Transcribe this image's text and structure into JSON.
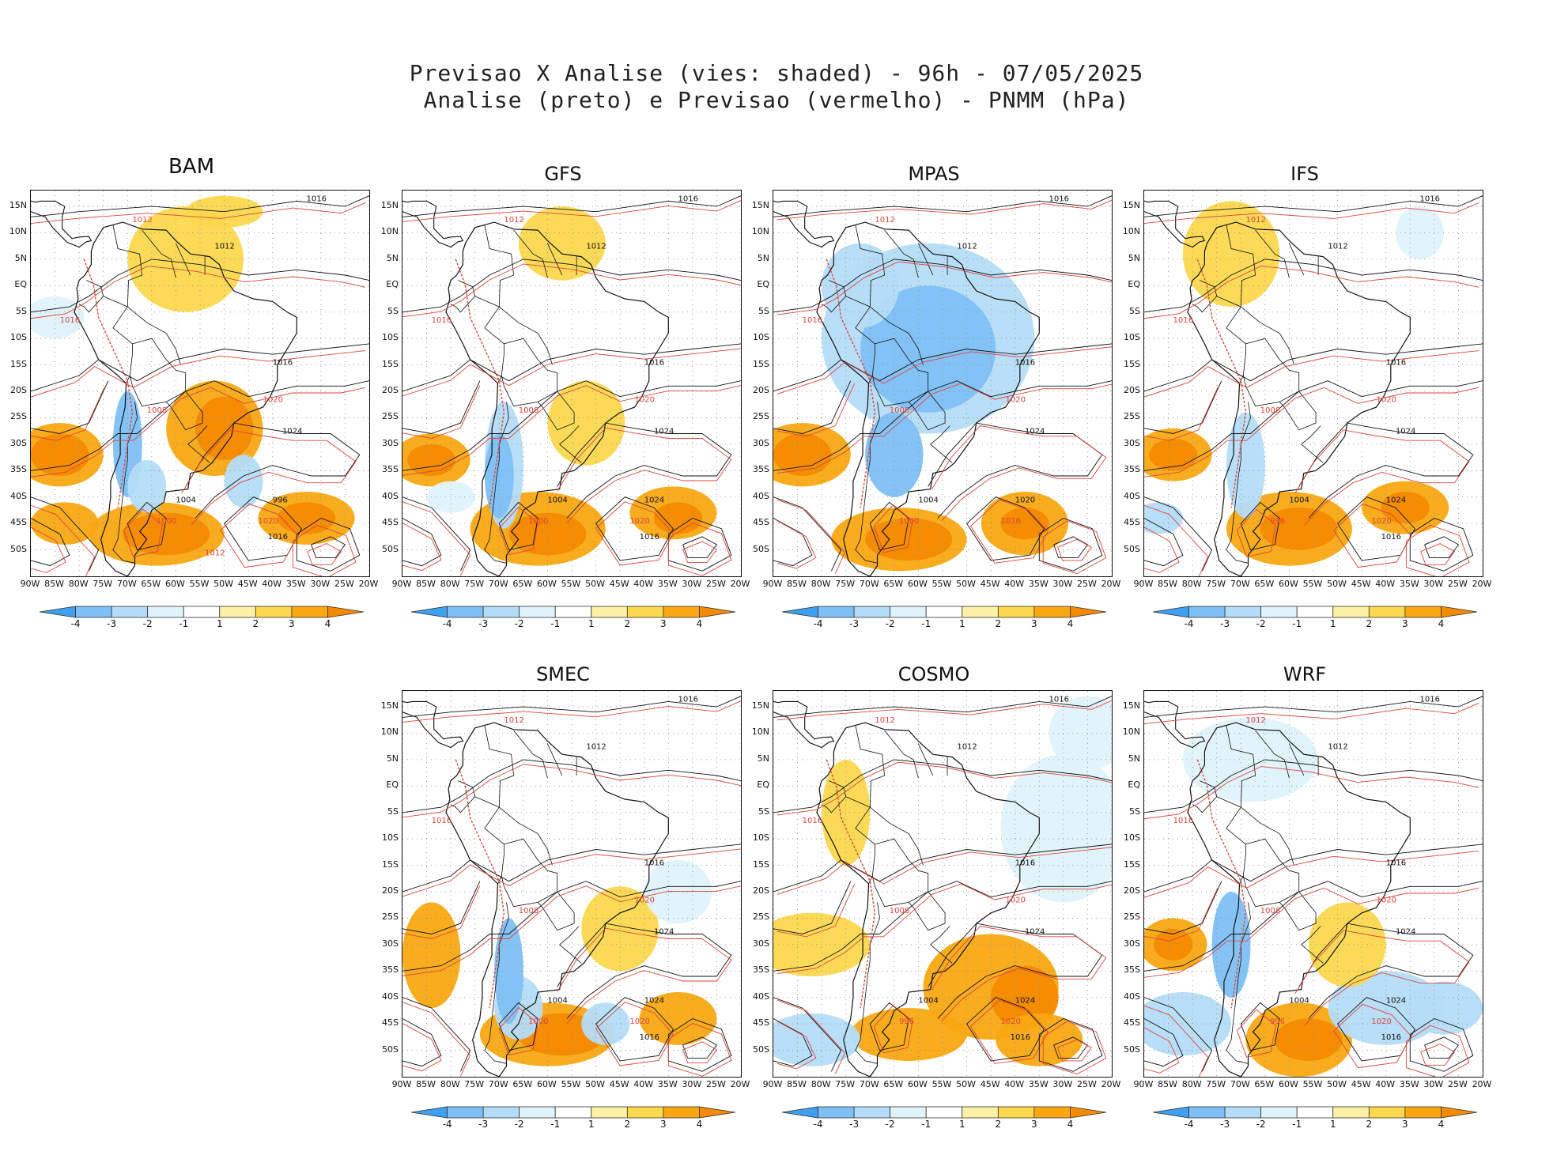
{
  "title_line1": "Previsao X Analise (vies: shaded) - 96h - 07/05/2025",
  "title_line2": "Analise (preto) e Previsao (vermelho) - PNMM (hPa)",
  "lat_ticks": [
    "15N",
    "10N",
    "5N",
    "EQ",
    "5S",
    "10S",
    "15S",
    "20S",
    "25S",
    "30S",
    "35S",
    "40S",
    "45S",
    "50S"
  ],
  "lon_ticks": [
    "90W",
    "85W",
    "80W",
    "75W",
    "70W",
    "65W",
    "60W",
    "55W",
    "50W",
    "45W",
    "40W",
    "35W",
    "30W",
    "25W",
    "20W"
  ],
  "colorbar": {
    "labels": [
      "-4",
      "-3",
      "-2",
      "-1",
      "1",
      "2",
      "3",
      "4"
    ],
    "colors": [
      "#3f9ff0",
      "#7ec0f5",
      "#b4dcf8",
      "#dff3fb",
      "#ffffff",
      "#fdf1a8",
      "#fcd84e",
      "#f9a811",
      "#f48a00"
    ]
  },
  "colors": {
    "analysis_contour": "#111111",
    "forecast_contour": "#e0443a"
  },
  "panels": [
    {
      "model": "BAM",
      "contour_labels": [
        "1016",
        "1012",
        "1012",
        "1016",
        "1016",
        "1020",
        "1024",
        "1008",
        "1004",
        "1000",
        "996",
        "1020",
        "1016",
        "1012"
      ]
    },
    {
      "model": "GFS",
      "contour_labels": [
        "1016",
        "1012",
        "1012",
        "1016",
        "1016",
        "1020",
        "1024",
        "1008",
        "1004",
        "1000",
        "1024",
        "1020",
        "1016"
      ]
    },
    {
      "model": "MPAS",
      "contour_labels": [
        "1016",
        "1012",
        "1012",
        "1016",
        "1016",
        "1020",
        "1024",
        "1008",
        "1004",
        "1000",
        "1020",
        "1016"
      ]
    },
    {
      "model": "IFS",
      "contour_labels": [
        "1016",
        "1012",
        "1012",
        "1016",
        "1016",
        "1020",
        "1024",
        "1008",
        "1004",
        "996",
        "1024",
        "1020",
        "1016"
      ]
    },
    {
      "model": "SMEC",
      "contour_labels": [
        "1016",
        "1012",
        "1012",
        "1016",
        "1016",
        "1020",
        "1024",
        "1008",
        "1004",
        "1000",
        "1024",
        "1020",
        "1016"
      ]
    },
    {
      "model": "COSMO",
      "contour_labels": [
        "1016",
        "1012",
        "1012",
        "1016",
        "1016",
        "1020",
        "1024",
        "1008",
        "1004",
        "996",
        "1024",
        "1020",
        "1016"
      ]
    },
    {
      "model": "WRF",
      "contour_labels": [
        "1016",
        "1012",
        "1012",
        "1016",
        "1016",
        "1020",
        "1024",
        "1008",
        "1004",
        "996",
        "1024",
        "1020",
        "1016"
      ]
    }
  ]
}
